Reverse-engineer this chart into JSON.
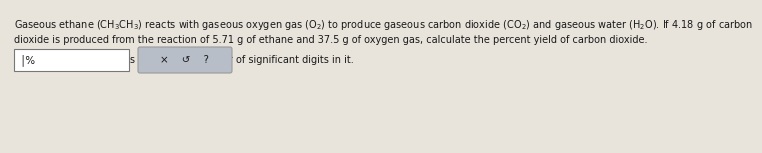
{
  "background_color": "#e8e4dc",
  "text_line1": "Gaseous ethane $\\left(\\mathrm{CH_3CH_3}\\right)$ reacts with gaseous oxygen gas $\\left(\\mathrm{O_2}\\right)$ to produce gaseous carbon dioxide $\\left(\\mathrm{CO_2}\\right)$ and gaseous water $\\left(\\mathrm{H_2O}\\right)$. If 4.18 g of carbon",
  "text_line2": "dioxide is produced from the reaction of 5.71 g of ethane and 37.5 g of oxygen gas, calculate the percent yield of carbon dioxide.",
  "text_line3": "Be sure your answer has the correct number of significant digits in it.",
  "text_color": "#1a1a1a",
  "font_size_main": 7.0,
  "font_size_box": 7.5
}
